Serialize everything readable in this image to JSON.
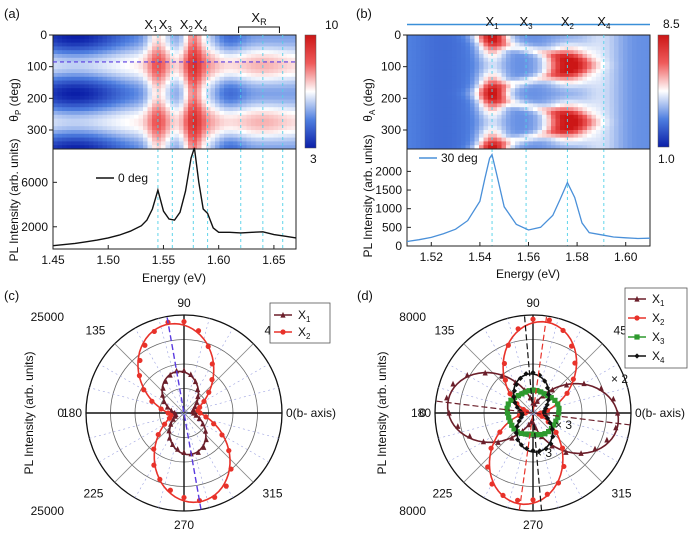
{
  "chart_data": [
    {
      "panel": "(a)",
      "type": "heatmap",
      "title": "",
      "ylabel": "θP (deg)",
      "ylabel_main": "θ",
      "ylabel_sub": "P",
      "ylabel_unit": " (deg)",
      "yticks": [
        0,
        100,
        200,
        300
      ],
      "ylim": [
        0,
        360
      ],
      "xlim": [
        1.45,
        1.67
      ],
      "colorbar": {
        "min": 3,
        "max": 10,
        "labels": [
          "10",
          "3"
        ]
      },
      "peak_labels": [
        {
          "name": "X1",
          "main": "X",
          "sub": "1",
          "energy": 1.545
        },
        {
          "name": "X3",
          "main": "X",
          "sub": "3",
          "energy": 1.558
        },
        {
          "name": "X2",
          "main": "X",
          "sub": "2",
          "energy": 1.577
        },
        {
          "name": "X4",
          "main": "X",
          "sub": "4",
          "energy": 1.59
        }
      ],
      "group_label": {
        "main": "X",
        "sub": "R",
        "range": [
          1.618,
          1.655
        ]
      },
      "dashed_marker_angle": 85,
      "x_dashed_lines": [
        1.545,
        1.558,
        1.577,
        1.59,
        1.62,
        1.64,
        1.658
      ]
    },
    {
      "panel": "(a) lower",
      "type": "line",
      "legend": "0 deg",
      "xlabel": "Energy (eV)",
      "ylabel": "PL Intensity (arb. units)",
      "xlim": [
        1.45,
        1.67
      ],
      "ylim": [
        0,
        9000
      ],
      "xticks": [
        "1.45",
        "1.50",
        "1.55",
        "1.60",
        "1.65"
      ],
      "yticks": [
        "2000",
        "6000"
      ],
      "x": [
        1.45,
        1.46,
        1.47,
        1.48,
        1.49,
        1.5,
        1.51,
        1.52,
        1.53,
        1.535,
        1.54,
        1.545,
        1.55,
        1.555,
        1.56,
        1.565,
        1.57,
        1.575,
        1.578,
        1.582,
        1.586,
        1.59,
        1.595,
        1.6,
        1.61,
        1.62,
        1.63,
        1.64,
        1.65,
        1.66,
        1.67
      ],
      "y": [
        300,
        400,
        500,
        650,
        800,
        1000,
        1250,
        1600,
        2100,
        2600,
        3600,
        5300,
        3400,
        2700,
        2600,
        3300,
        5200,
        8200,
        9100,
        6000,
        3600,
        3200,
        1900,
        1500,
        1500,
        1450,
        1500,
        1550,
        1300,
        1150,
        1000
      ]
    },
    {
      "panel": "(b)",
      "type": "heatmap",
      "ylabel": "θA (deg)",
      "ylabel_main": "θ",
      "ylabel_sub": "A",
      "ylabel_unit": " (deg)",
      "yticks": [
        0,
        100,
        200,
        300
      ],
      "ylim": [
        0,
        360
      ],
      "xlim": [
        1.51,
        1.61
      ],
      "colorbar": {
        "min": 1.0,
        "max": 8.5,
        "labels": [
          "8.5",
          "1.0"
        ]
      },
      "peak_labels": [
        {
          "name": "X1",
          "main": "X",
          "sub": "1",
          "energy": 1.545
        },
        {
          "name": "X3",
          "main": "X",
          "sub": "3",
          "energy": 1.559
        },
        {
          "name": "X2",
          "main": "X",
          "sub": "2",
          "energy": 1.576
        },
        {
          "name": "X4",
          "main": "X",
          "sub": "4",
          "energy": 1.591
        }
      ],
      "marker_angle": 30
    },
    {
      "panel": "(b) lower",
      "type": "line",
      "legend": "30 deg",
      "xlabel": "Energy (eV)",
      "ylabel": "PL Intensity (arb. units)",
      "xlim": [
        1.51,
        1.61
      ],
      "ylim": [
        0,
        2600
      ],
      "xticks": [
        "1.52",
        "1.54",
        "1.56",
        "1.58",
        "1.60"
      ],
      "yticks": [
        "0",
        "500",
        "1000",
        "1500",
        "2000"
      ],
      "x": [
        1.51,
        1.515,
        1.52,
        1.525,
        1.53,
        1.535,
        1.54,
        1.542,
        1.544,
        1.545,
        1.547,
        1.55,
        1.555,
        1.56,
        1.565,
        1.57,
        1.573,
        1.576,
        1.579,
        1.582,
        1.585,
        1.59,
        1.595,
        1.6,
        1.605,
        1.61
      ],
      "y": [
        120,
        170,
        230,
        330,
        450,
        680,
        1200,
        1800,
        2350,
        2450,
        1900,
        1050,
        580,
        430,
        500,
        820,
        1250,
        1700,
        1300,
        620,
        360,
        300,
        240,
        220,
        200,
        210
      ]
    },
    {
      "panel": "(c)",
      "type": "polar",
      "rmax": 25000,
      "rlabels": [
        "25000",
        "0",
        "25000"
      ],
      "ylabel": "PL Intensity (arb. units)",
      "angle_labels": [
        "90",
        "45",
        "0(b- axis)",
        "315",
        "270",
        "225",
        "180",
        "135"
      ],
      "series": [
        {
          "name": "X1",
          "main": "X",
          "sub": "1",
          "color": "#6b1f2a",
          "marker": "triangle",
          "Iconst": 2200,
          "amp": 8500,
          "phase": 100
        },
        {
          "name": "X2",
          "main": "X",
          "sub": "2",
          "color": "#e8322a",
          "marker": "circle",
          "Iconst": 3500,
          "amp": 19500,
          "phase": 100
        }
      ],
      "axis_line_angle": 100
    },
    {
      "panel": "(d)",
      "type": "polar",
      "rmax": 8000,
      "rlabels": [
        "8000",
        "0",
        "8000"
      ],
      "ylabel": "PL Intensity (arb. units)",
      "angle_labels": [
        "90",
        "45",
        "0(b- axis)",
        "315",
        "270",
        "225",
        "180",
        "135"
      ],
      "series": [
        {
          "name": "X1",
          "main": "X",
          "sub": "1",
          "color": "#6b1f2a",
          "marker": "triangle",
          "Iconst": 700,
          "amp": 6300,
          "phase": 173
        },
        {
          "name": "X2",
          "main": "X",
          "sub": "2",
          "color": "#e8322a",
          "marker": "circle",
          "Iconst": 500,
          "amp": 7000,
          "phase": 82
        },
        {
          "name": "X3",
          "main": "X",
          "sub": "3",
          "color": "#2e9a2e",
          "marker": "square",
          "Iconst": 1800,
          "amp": 300,
          "phase": 0
        },
        {
          "name": "X4",
          "main": "X",
          "sub": "4",
          "color": "#111111",
          "marker": "diamond",
          "Iconst": 900,
          "amp": 2300,
          "phase": 95
        }
      ],
      "annotations": [
        {
          "text": "× 2",
          "color": "#6b1f2a"
        },
        {
          "text": "× 3",
          "color": "#2e9a2e"
        },
        {
          "text": "× 3",
          "color": "#111111"
        }
      ]
    }
  ],
  "panel_labels": [
    "(a)",
    "(b)",
    "(c)",
    "(d)"
  ]
}
